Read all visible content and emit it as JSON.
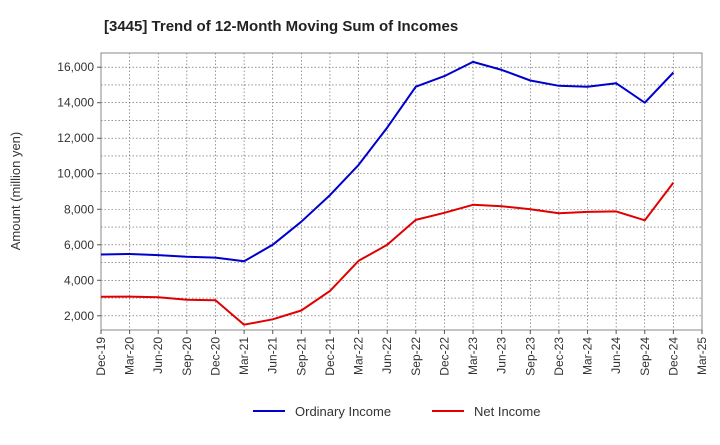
{
  "chart_data": {
    "type": "line",
    "title": "[3445]  Trend of 12-Month Moving Sum of Incomes",
    "xlabel": "",
    "ylabel": "Amount (million yen)",
    "ylim": [
      1200,
      16800
    ],
    "yticks": [
      2000,
      4000,
      6000,
      8000,
      10000,
      12000,
      14000,
      16000
    ],
    "ytick_labels": [
      "2,000",
      "4,000",
      "6,000",
      "8,000",
      "10,000",
      "12,000",
      "14,000",
      "16,000"
    ],
    "categories": [
      "Dec-19",
      "Mar-20",
      "Jun-20",
      "Sep-20",
      "Dec-20",
      "Mar-21",
      "Jun-21",
      "Sep-21",
      "Dec-21",
      "Mar-22",
      "Jun-22",
      "Sep-22",
      "Dec-22",
      "Mar-23",
      "Jun-23",
      "Sep-23",
      "Dec-23",
      "Mar-24",
      "Jun-24",
      "Sep-24",
      "Dec-24",
      "Mar-25"
    ],
    "grid": true,
    "legend_position": "bottom",
    "series": [
      {
        "name": "Ordinary Income",
        "color": "#0000cc",
        "values": [
          5450,
          5480,
          5420,
          5320,
          5280,
          5070,
          6000,
          7300,
          8800,
          10500,
          12600,
          14900,
          15500,
          16300,
          15850,
          15250,
          14950,
          14900,
          15100,
          14000,
          15700,
          null
        ]
      },
      {
        "name": "Net Income",
        "color": "#e00000",
        "values": [
          3070,
          3080,
          3040,
          2900,
          2870,
          1500,
          1800,
          2300,
          3400,
          5100,
          6000,
          7400,
          7800,
          8250,
          8170,
          8000,
          7780,
          7850,
          7880,
          7380,
          9500,
          null
        ]
      }
    ]
  }
}
